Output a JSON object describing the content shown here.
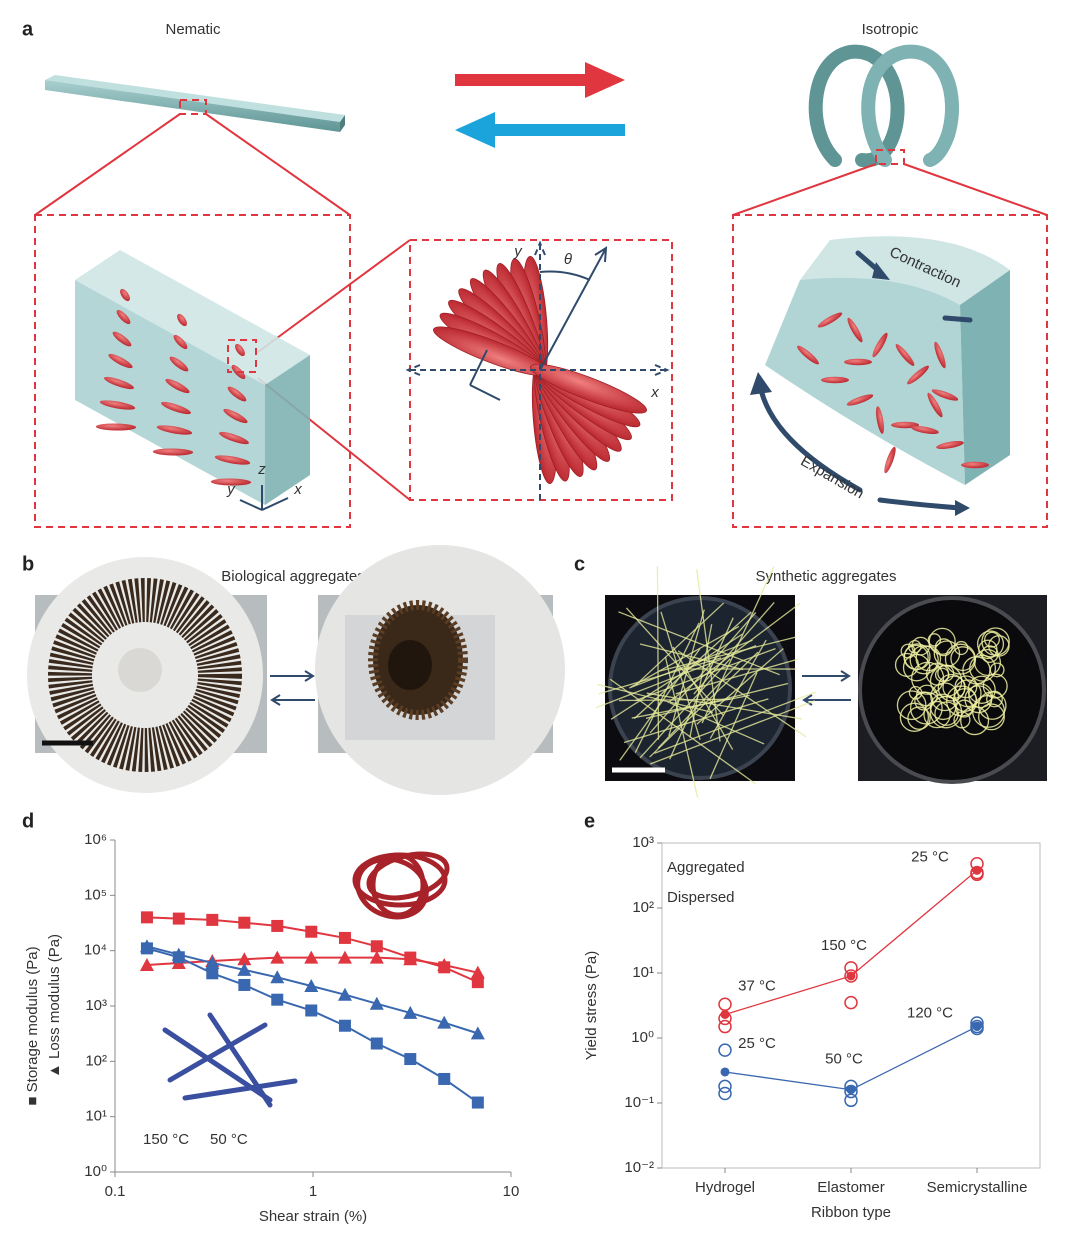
{
  "figure": {
    "panel_a": {
      "label": "a",
      "left_title": "Nematic",
      "right_title": "Isotropic",
      "axes_mid": {
        "y": "y",
        "theta": "θ",
        "x": "x"
      },
      "axes_left": {
        "z": "z",
        "y": "y",
        "x": "x"
      },
      "contraction": "Contraction",
      "expansion": "Expansion"
    },
    "panel_b": {
      "label": "b",
      "title": "Biological aggregates"
    },
    "panel_c": {
      "label": "c",
      "title": "Synthetic aggregates"
    }
  },
  "chart_data": [
    {
      "type": "line",
      "panel_label": "d",
      "xlabel": "Shear strain (%)",
      "ylabels": [
        "■ Storage modulus (Pa)",
        "▲ Loss modulus (Pa)"
      ],
      "x": [
        0.145,
        0.21,
        0.31,
        0.45,
        0.66,
        0.98,
        1.45,
        2.1,
        3.1,
        4.6,
        6.8
      ],
      "xlog": true,
      "ylog": true,
      "frame": "axes",
      "xlim": [
        0.1,
        10
      ],
      "xticks": [
        0.1,
        1,
        10
      ],
      "ylim": [
        1,
        1000000
      ],
      "yticks": [
        {
          "value": 1,
          "label": "10⁰"
        },
        {
          "value": 10,
          "label": "10¹"
        },
        {
          "value": 100,
          "label": "10²"
        },
        {
          "value": 1000,
          "label": "10³"
        },
        {
          "value": 10000,
          "label": "10⁴"
        },
        {
          "value": 100000,
          "label": "10⁵"
        },
        {
          "value": 1000000,
          "label": "10⁶"
        }
      ],
      "legend": [
        {
          "label": "150 °C",
          "color": "#e0363f"
        },
        {
          "label": "50 °C",
          "color": "#3a68b0"
        }
      ],
      "series": [
        {
          "color": "#e0363f",
          "marker": "square",
          "values": [
            40000,
            38000,
            36000,
            32000,
            28000,
            22000,
            17000,
            12000,
            7500,
            5000,
            2700
          ]
        },
        {
          "color": "#e0363f",
          "marker": "triangle",
          "values": [
            5500,
            6000,
            6500,
            7000,
            7500,
            7500,
            7500,
            7500,
            7000,
            5500,
            4000
          ]
        },
        {
          "color": "#3a68b0",
          "marker": "square",
          "values": [
            11000,
            7600,
            3900,
            2400,
            1300,
            830,
            440,
            210,
            110,
            48,
            18
          ]
        },
        {
          "color": "#3a68b0",
          "marker": "triangle",
          "values": [
            12000,
            8500,
            6000,
            4500,
            3300,
            2300,
            1600,
            1100,
            750,
            500,
            320
          ]
        }
      ]
    },
    {
      "type": "line",
      "panel_label": "e",
      "xlabel": "Ribbon type",
      "ylabel": "Yield stress (Pa)",
      "categories": [
        "Hydrogel",
        "Elastomer",
        "Semicrystalline"
      ],
      "ylog": true,
      "frame": "box",
      "ylim": [
        0.01,
        1000
      ],
      "yticks": [
        {
          "value": 0.01,
          "label": "10⁻²"
        },
        {
          "value": 0.1,
          "label": "10⁻¹"
        },
        {
          "value": 1,
          "label": "10⁰"
        },
        {
          "value": 10,
          "label": "10¹"
        },
        {
          "value": 100,
          "label": "10²"
        },
        {
          "value": 1000,
          "label": "10³"
        }
      ],
      "series": [
        {
          "name": "Aggregated",
          "color": "#e0363f",
          "marker": "circle",
          "values": [
            2.3,
            9,
            380
          ],
          "samples": [
            [
              3.3,
              2.0,
              1.5
            ],
            [
              12,
              9,
              3.5
            ],
            [
              480,
              350,
              330
            ]
          ],
          "annotations": [
            "37 °C",
            "150 °C",
            "25 °C"
          ]
        },
        {
          "name": "Dispersed",
          "color": "#3a68b0",
          "marker": "circle",
          "values": [
            0.3,
            0.16,
            1.5
          ],
          "samples": [
            [
              0.65,
              0.18,
              0.14
            ],
            [
              0.18,
              0.15,
              0.11
            ],
            [
              1.7,
              1.5,
              1.4
            ]
          ],
          "annotations": [
            "25 °C",
            "50 °C",
            "120 °C"
          ]
        }
      ]
    }
  ]
}
